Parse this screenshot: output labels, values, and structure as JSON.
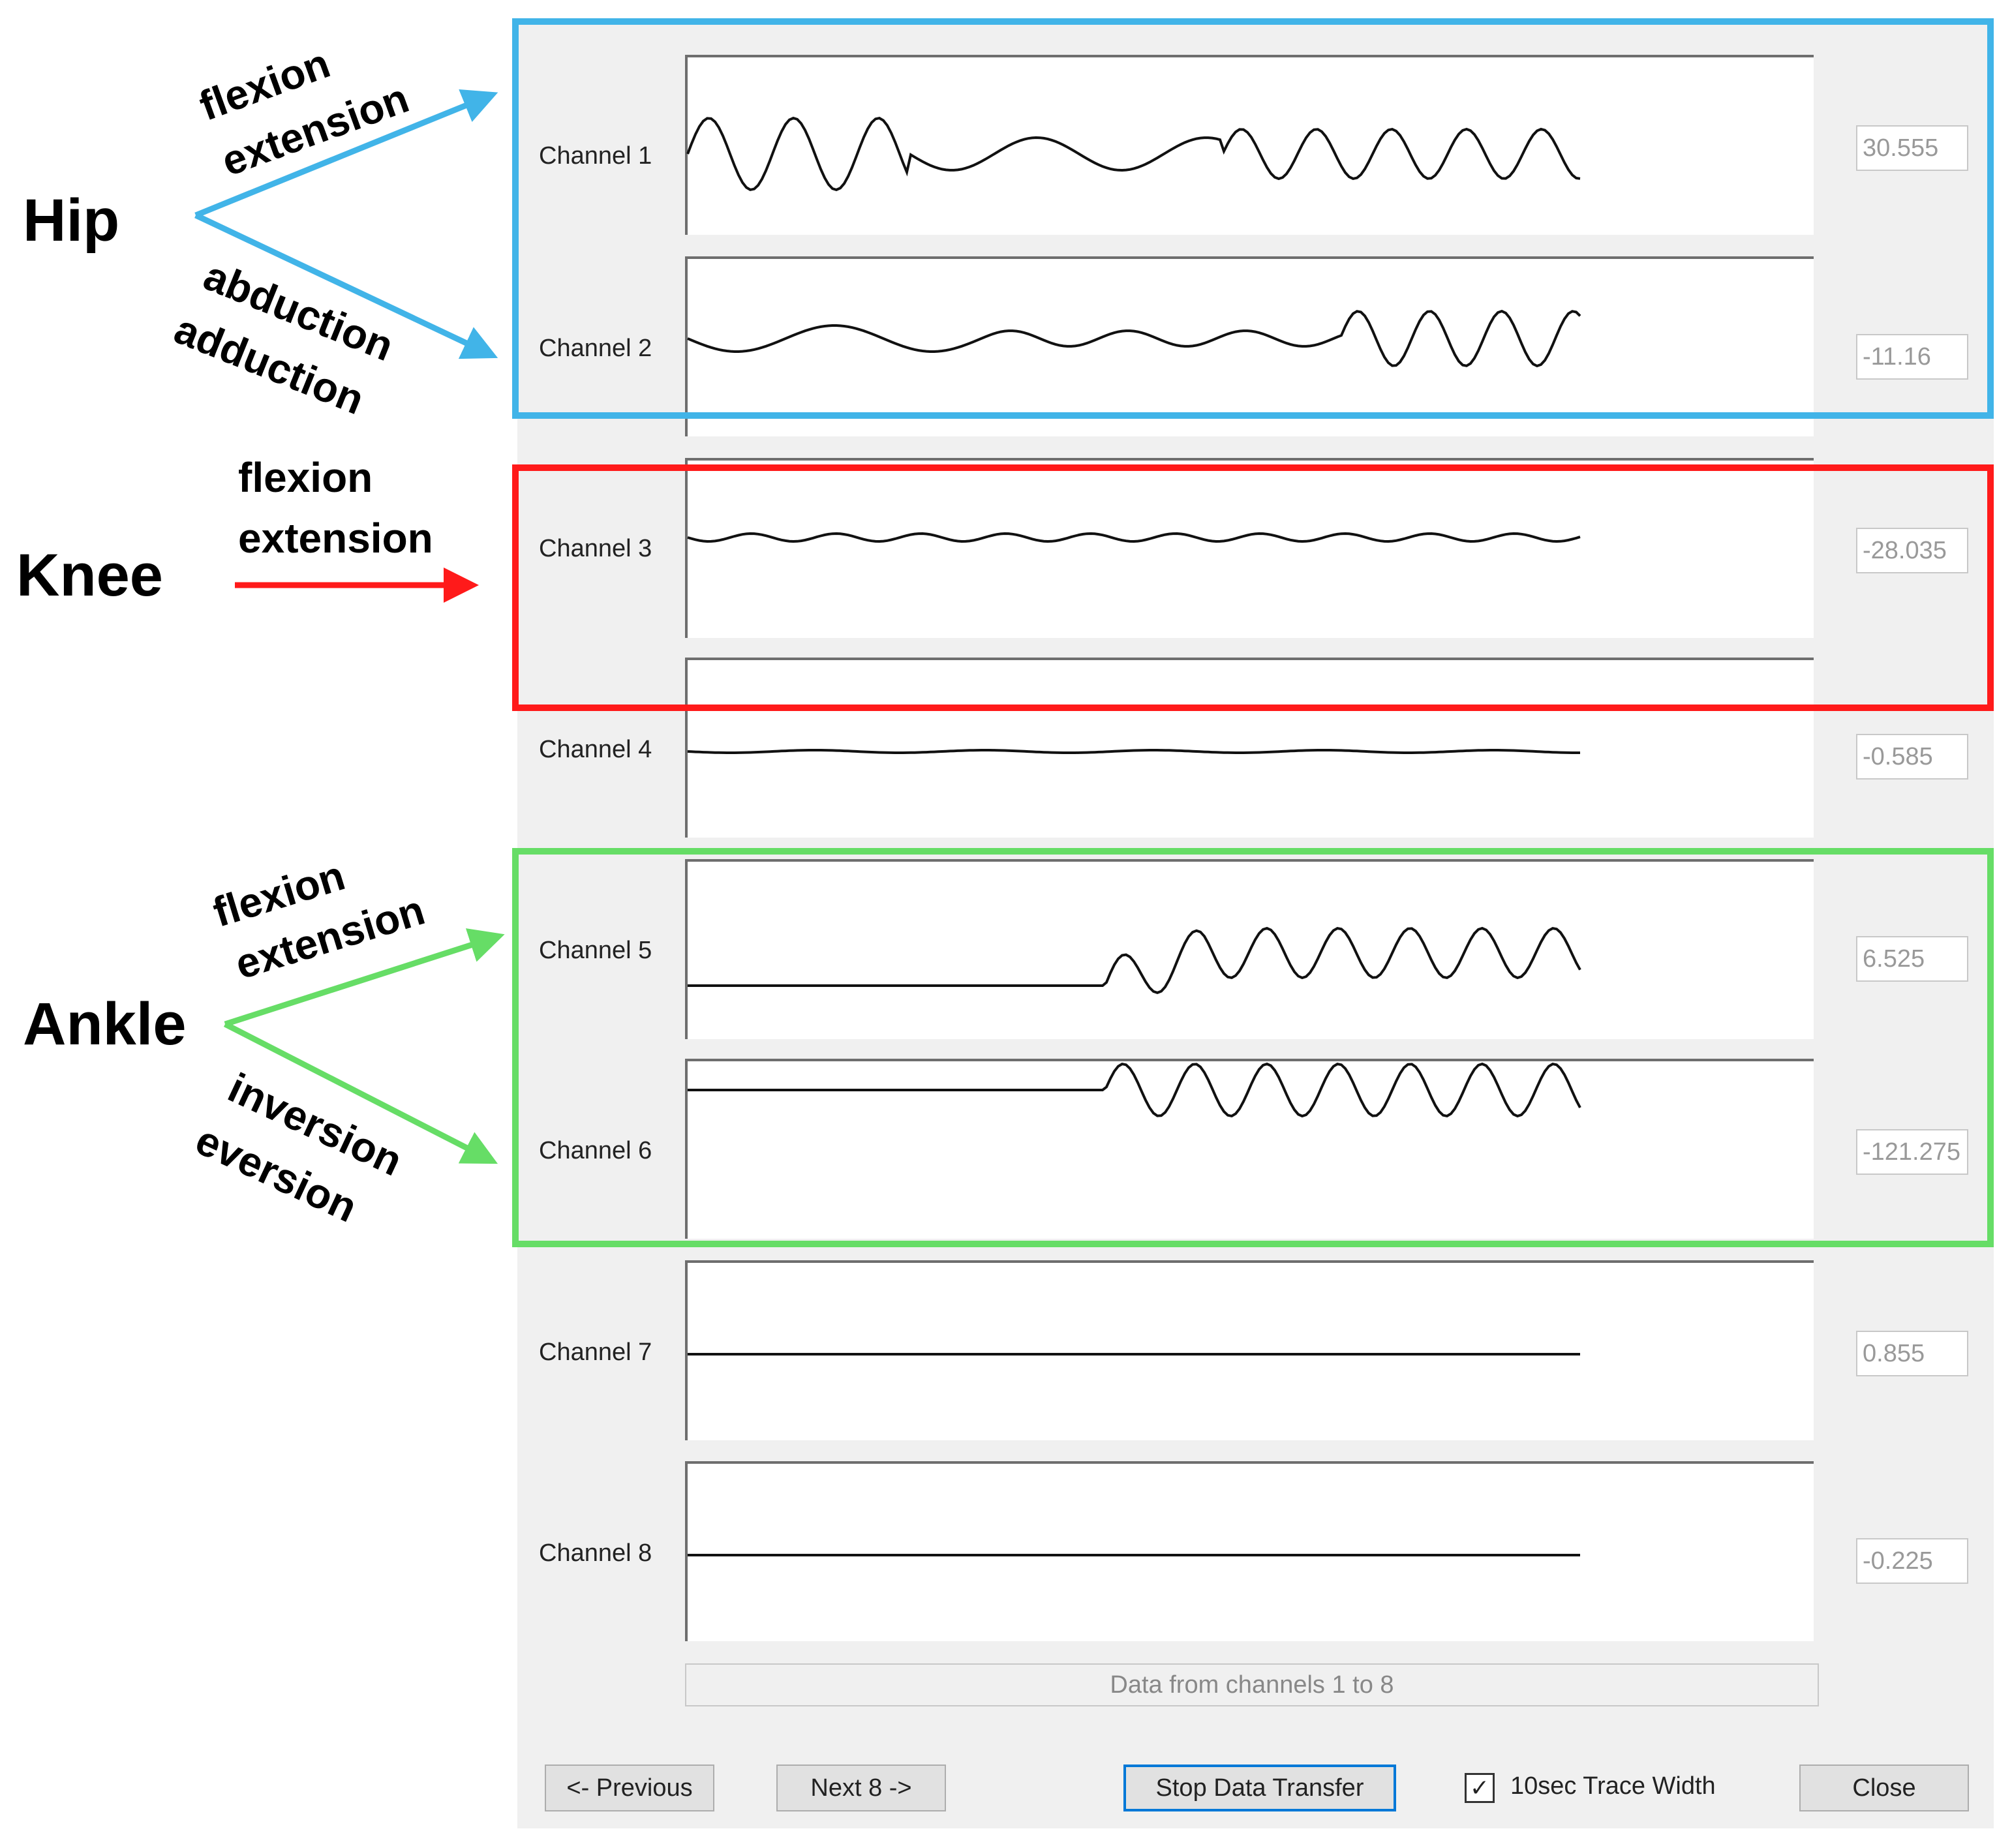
{
  "annotations": {
    "hip": {
      "label": "Hip",
      "upper": [
        "flexion",
        "extension"
      ],
      "lower": [
        "abduction",
        "adduction"
      ],
      "color": "#41b4e8"
    },
    "knee": {
      "label": "Knee",
      "upper": [
        "flexion",
        "extension"
      ],
      "color": "#ff1a1a"
    },
    "ankle": {
      "label": "Ankle",
      "upper": [
        "flexion",
        "extension"
      ],
      "lower": [
        "inversion",
        "eversion"
      ],
      "color": "#66dd66"
    }
  },
  "channels": [
    {
      "label": "Channel 1",
      "value": "30.555"
    },
    {
      "label": "Channel 2",
      "value": "-11.16"
    },
    {
      "label": "Channel 3",
      "value": "-28.035"
    },
    {
      "label": "Channel 4",
      "value": "-0.585"
    },
    {
      "label": "Channel 5",
      "value": "6.525"
    },
    {
      "label": "Channel 6",
      "value": "-121.275"
    },
    {
      "label": "Channel 7",
      "value": "0.855"
    },
    {
      "label": "Channel 8",
      "value": "-0.225"
    }
  ],
  "status_bar": "Data from channels 1 to 8",
  "buttons": {
    "previous": "<- Previous",
    "next": "Next 8 ->",
    "stop": "Stop Data Transfer",
    "close": "Close"
  },
  "checkbox": {
    "label": "10sec Trace Width",
    "checked": true
  },
  "colors": {
    "trace": "#111111",
    "window": "#f0f0f0",
    "focus": "#0078d7"
  }
}
